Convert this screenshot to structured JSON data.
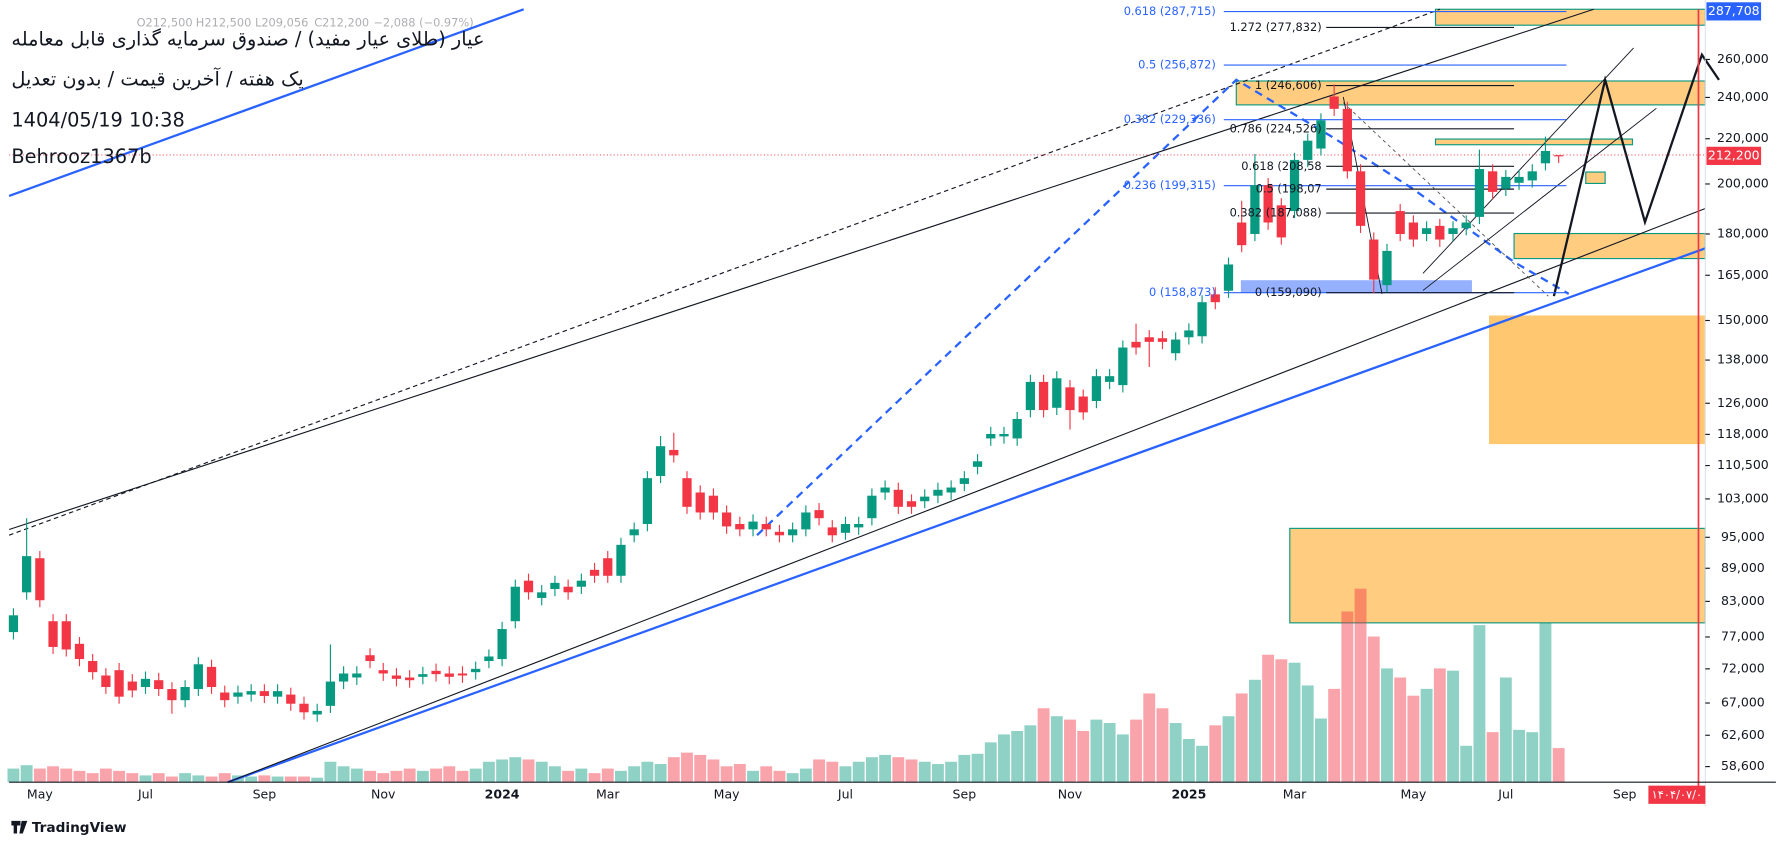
{
  "chart_data": {
    "type": "candlestick",
    "title": "عیار (طلای عیار مفید) / صندوق سرمایه گذاری قابل معامله",
    "subtitle": "یک هفته / آخرین قیمت / بدون تعدیل",
    "timestamp": "1404/05/19 10:38",
    "author": "Behrooz1367b",
    "header_ohlc": [
      "O212,500",
      "H212,500",
      "L209,056",
      "C212,200",
      "−2,088 (−0.97%)"
    ],
    "brand": "TradingView",
    "date_marker": "۱۴۰۴/۰۷/۰",
    "log_scale": true,
    "grid": false,
    "up_color": "#089981",
    "down_color": "#f23645",
    "ylim": [
      56700,
      289000
    ],
    "yticks": [
      {
        "value": 260000,
        "label": "260,000"
      },
      {
        "value": 240000,
        "label": "240,000"
      },
      {
        "value": 220000,
        "label": "220,000"
      },
      {
        "value": 200000,
        "label": "200,000"
      },
      {
        "value": 180000,
        "label": "180,000"
      },
      {
        "value": 165000,
        "label": "165,000"
      },
      {
        "value": 150000,
        "label": "150,000"
      },
      {
        "value": 138000,
        "label": "138,000"
      },
      {
        "value": 126000,
        "label": "126,000"
      },
      {
        "value": 118000,
        "label": "118,000"
      },
      {
        "value": 110500,
        "label": "110,500"
      },
      {
        "value": 103000,
        "label": "103,000"
      },
      {
        "value": 95000,
        "label": "95,000"
      },
      {
        "value": 89000,
        "label": "89,000"
      },
      {
        "value": 83000,
        "label": "83,000"
      },
      {
        "value": 77000,
        "label": "77,000"
      },
      {
        "value": 72000,
        "label": "72,000"
      },
      {
        "value": 67000,
        "label": "67,000"
      },
      {
        "value": 62600,
        "label": "62,600"
      },
      {
        "value": 58600,
        "label": "58,600"
      }
    ],
    "price_labels": [
      {
        "value": 287708,
        "label": "287,708",
        "color": "#2962ff"
      },
      {
        "value": 212200,
        "label": "212,200",
        "color": "#f23645"
      }
    ],
    "fib_left": [
      "0.618 (287,715)",
      "0.5 (256,872)",
      "0.382 (229,336)",
      "0.236 (199,315)",
      "0 (158,873)"
    ],
    "fib_right": [
      "1.272 (277,832)",
      "1 (246,606)",
      "0.786 (224,526)",
      "0.618 (208,58",
      "0.5 (198,07",
      "0.382 (187,088)",
      "0 (159,090)"
    ],
    "categories": [
      null,
      null,
      "May",
      null,
      null,
      null,
      null,
      null,
      null,
      null,
      "Jul",
      null,
      null,
      null,
      null,
      null,
      null,
      null,
      null,
      "Sep",
      null,
      null,
      null,
      null,
      null,
      null,
      null,
      null,
      "Nov",
      null,
      null,
      null,
      null,
      null,
      null,
      null,
      null,
      "2024",
      null,
      null,
      null,
      null,
      null,
      null,
      null,
      "Mar",
      null,
      null,
      null,
      null,
      null,
      null,
      null,
      null,
      "May",
      null,
      null,
      null,
      null,
      null,
      null,
      null,
      null,
      "Jul",
      null,
      null,
      null,
      null,
      null,
      null,
      null,
      null,
      "Sep",
      null,
      null,
      null,
      null,
      null,
      null,
      null,
      "Nov",
      null,
      null,
      null,
      null,
      null,
      null,
      null,
      null,
      "2025",
      null,
      null,
      null,
      null,
      null,
      null,
      null,
      "Mar",
      null,
      null,
      null,
      null,
      null,
      null,
      null,
      null,
      "May",
      null,
      null,
      null,
      null,
      null,
      null,
      "Jul",
      null,
      null,
      null,
      null,
      null,
      null,
      null,
      null,
      "Sep",
      null,
      null,
      null,
      null,
      null
    ],
    "open": [
      77800,
      84600,
      90900,
      79600,
      79600,
      75900,
      73200,
      71000,
      71800,
      70100,
      69300,
      70300,
      69000,
      67400,
      69000,
      72300,
      68500,
      67900,
      68200,
      68700,
      67900,
      68200,
      66900,
      65400,
      66600,
      70100,
      70700,
      74100,
      71800,
      71000,
      70700,
      70800,
      71700,
      71300,
      71300,
      71500,
      73200,
      73500,
      79600,
      86700,
      83600,
      85200,
      85600,
      85600,
      88700,
      90900,
      87600,
      95400,
      97700,
      108100,
      114200,
      107600,
      104400,
      103700,
      100100,
      97700,
      96600,
      97700,
      96100,
      95400,
      96600,
      100600,
      97000,
      95900,
      97000,
      98900,
      104400,
      105000,
      102500,
      102500,
      103700,
      104400,
      106300,
      110200,
      117000,
      117500,
      117000,
      124200,
      131800,
      124800,
      130300,
      127800,
      126600,
      131800,
      130900,
      143400,
      144800,
      144500,
      140000,
      144800,
      145100,
      158500,
      159700,
      184400,
      180000,
      199500,
      191200,
      188900,
      210400,
      215500,
      240500,
      234300,
      205400,
      177900,
      161600,
      188900,
      184400,
      180000,
      183100,
      180000,
      182200,
      186600,
      205400,
      198000,
      200500,
      201500,
      208900,
      212500,
      null,
      null,
      null,
      null,
      null,
      null,
      null,
      null,
      null,
      null
    ],
    "high": [
      81800,
      98900,
      92300,
      80800,
      80800,
      77000,
      74300,
      72100,
      72900,
      71200,
      71600,
      71400,
      70000,
      70300,
      73800,
      73400,
      69500,
      69500,
      69700,
      69700,
      69700,
      69200,
      67900,
      66900,
      75800,
      72400,
      72400,
      75200,
      72900,
      72100,
      71800,
      72300,
      72800,
      72400,
      72400,
      73100,
      75000,
      79500,
      86900,
      88000,
      85900,
      87600,
      86900,
      88000,
      90000,
      92300,
      94900,
      98000,
      109200,
      117600,
      118400,
      109200,
      106000,
      105300,
      101600,
      99200,
      99700,
      99200,
      97500,
      98000,
      101600,
      102100,
      98500,
      99200,
      99200,
      105300,
      107100,
      106600,
      104000,
      105100,
      106600,
      107100,
      109200,
      113200,
      119900,
      119900,
      123700,
      133800,
      133800,
      134800,
      132300,
      129700,
      135400,
      135400,
      143800,
      149000,
      147000,
      146700,
      146300,
      149100,
      158200,
      160900,
      171300,
      193000,
      213000,
      202500,
      194100,
      213600,
      222400,
      232100,
      246600,
      237800,
      208500,
      180600,
      176300,
      191700,
      187200,
      184900,
      185800,
      184900,
      187200,
      215000,
      208500,
      206000,
      206000,
      208500,
      221000,
      212500,
      null,
      null,
      null,
      null,
      null,
      null,
      null,
      null,
      null,
      null
    ],
    "low": [
      76600,
      83300,
      82000,
      74300,
      73900,
      72400,
      70400,
      68300,
      66900,
      67800,
      68300,
      68000,
      65500,
      66400,
      68000,
      68300,
      66400,
      66900,
      67200,
      67000,
      66900,
      65900,
      64700,
      64400,
      65600,
      69000,
      69600,
      72100,
      70200,
      69400,
      69200,
      69700,
      70100,
      69700,
      69900,
      70400,
      72100,
      72400,
      78400,
      83300,
      82300,
      83900,
      83300,
      84300,
      86300,
      86300,
      86300,
      94000,
      96200,
      106500,
      111200,
      99800,
      98600,
      98600,
      95700,
      95200,
      95200,
      95200,
      94000,
      94000,
      95200,
      97400,
      94000,
      94500,
      95500,
      97400,
      102800,
      99800,
      99800,
      101000,
      102100,
      102800,
      104700,
      108500,
      115200,
      115700,
      115200,
      122300,
      122300,
      122900,
      119200,
      121700,
      124700,
      129800,
      128900,
      139600,
      136000,
      141200,
      137900,
      142600,
      142900,
      153600,
      157300,
      173200,
      177300,
      181600,
      176000,
      186100,
      207200,
      212300,
      230800,
      202300,
      180400,
      158900,
      159200,
      177300,
      175200,
      177300,
      175200,
      177300,
      179500,
      183800,
      193700,
      195000,
      197500,
      198500,
      205800,
      209056,
      null,
      null,
      null,
      null,
      null,
      null,
      null,
      null,
      null,
      null
    ],
    "close": [
      80600,
      91300,
      83200,
      75400,
      75000,
      73500,
      71500,
      69300,
      67900,
      68800,
      70500,
      69000,
      67400,
      69300,
      72700,
      69300,
      67400,
      68500,
      68700,
      68000,
      68700,
      66900,
      65700,
      65900,
      70100,
      71300,
      71300,
      73200,
      71300,
      70500,
      70300,
      71200,
      71200,
      70800,
      71000,
      72000,
      73900,
      78300,
      85600,
      84600,
      84600,
      86300,
      84600,
      86700,
      87600,
      87600,
      93500,
      96600,
      107600,
      115100,
      112900,
      101300,
      100100,
      100100,
      97200,
      96600,
      98200,
      96600,
      95400,
      96600,
      100100,
      98900,
      95400,
      97700,
      97700,
      103700,
      105500,
      101300,
      101300,
      103500,
      105000,
      105500,
      107600,
      111500,
      118100,
      118100,
      121900,
      131800,
      124200,
      132800,
      124200,
      123600,
      133400,
      133400,
      141700,
      141700,
      143400,
      143400,
      144100,
      146900,
      155900,
      155900,
      168800,
      175800,
      199500,
      184400,
      178700,
      210400,
      219100,
      228700,
      234300,
      205400,
      183100,
      163500,
      173700,
      180000,
      177900,
      182200,
      177900,
      182200,
      184400,
      206400,
      196700,
      203000,
      203000,
      205400,
      214400,
      212200,
      null,
      null,
      null,
      null,
      null,
      null,
      null,
      null,
      null,
      null
    ],
    "volume": [
      12,
      15,
      12,
      14,
      12,
      10,
      8,
      12,
      10,
      8,
      6,
      8,
      5,
      8,
      6,
      5,
      8,
      6,
      5,
      6,
      5,
      5,
      5,
      4,
      18,
      14,
      12,
      10,
      8,
      10,
      12,
      10,
      12,
      14,
      10,
      12,
      18,
      20,
      22,
      20,
      18,
      14,
      10,
      12,
      8,
      12,
      10,
      14,
      18,
      16,
      22,
      26,
      24,
      20,
      14,
      16,
      10,
      14,
      10,
      8,
      12,
      20,
      18,
      14,
      18,
      22,
      24,
      22,
      20,
      18,
      16,
      18,
      24,
      25,
      35,
      42,
      45,
      50,
      65,
      58,
      55,
      45,
      55,
      52,
      42,
      55,
      78,
      65,
      52,
      38,
      32,
      50,
      58,
      78,
      90,
      112,
      108,
      105,
      85,
      56,
      82,
      150,
      170,
      128,
      100,
      92,
      76,
      82,
      100,
      98,
      32,
      138,
      44,
      92,
      46,
      44,
      140,
      30,
      null,
      null,
      null,
      null,
      null,
      null,
      null,
      null,
      null,
      null
    ]
  }
}
